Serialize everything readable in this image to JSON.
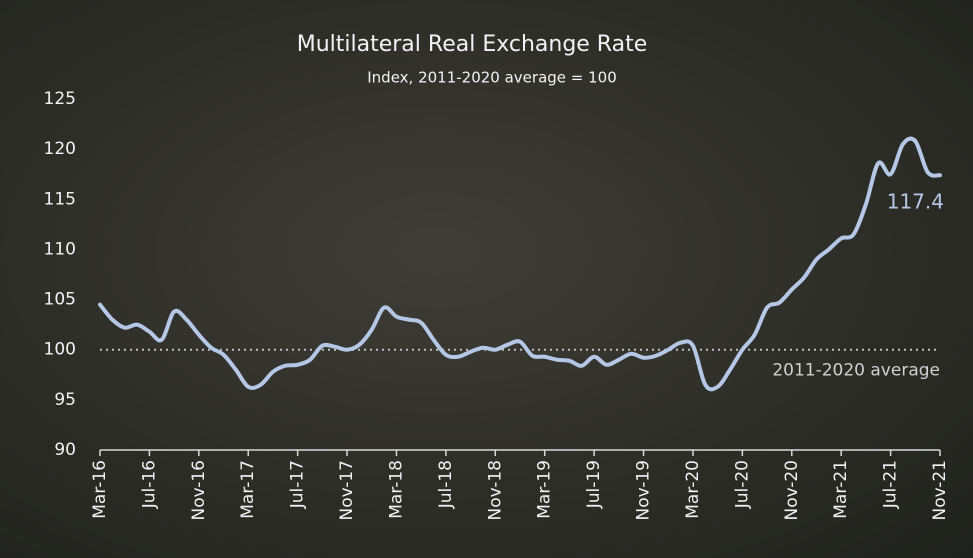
{
  "chart_data": {
    "type": "line",
    "title": "Multilateral Real Exchange Rate",
    "subtitle": "Index, 2011-2020 average = 100",
    "categories": [
      "Mar-16",
      null,
      null,
      null,
      "Jul-16",
      null,
      null,
      null,
      "Nov-16",
      null,
      null,
      null,
      "Mar-17",
      null,
      null,
      null,
      "Jul-17",
      null,
      null,
      null,
      "Nov-17",
      null,
      null,
      null,
      "Mar-18",
      null,
      null,
      null,
      "Jul-18",
      null,
      null,
      null,
      "Nov-18",
      null,
      null,
      null,
      "Mar-19",
      null,
      null,
      null,
      "Jul-19",
      null,
      null,
      null,
      "Nov-19",
      null,
      null,
      null,
      "Mar-20",
      null,
      null,
      null,
      "Jul-20",
      null,
      null,
      null,
      "Nov-20",
      null,
      null,
      null,
      "Mar-21",
      null,
      null,
      null,
      "Jul-21",
      null,
      null,
      null,
      "Nov-21"
    ],
    "series": [
      {
        "name": "Multilateral Real Exchange Rate",
        "color": "#b4c7e7",
        "values": [
          104.5,
          103.0,
          102.2,
          102.5,
          101.8,
          101.0,
          103.8,
          103.0,
          101.5,
          100.2,
          99.5,
          98.0,
          96.3,
          96.5,
          97.8,
          98.4,
          98.5,
          99.0,
          100.4,
          100.3,
          100.0,
          100.5,
          102.0,
          104.2,
          103.3,
          103.0,
          102.7,
          101.0,
          99.5,
          99.3,
          99.8,
          100.2,
          100.0,
          100.5,
          100.8,
          99.4,
          99.3,
          99.0,
          98.9,
          98.4,
          99.3,
          98.5,
          99.0,
          99.6,
          99.2,
          99.4,
          100.0,
          100.7,
          100.4,
          96.5,
          96.3,
          98.0,
          100.0,
          101.5,
          104.2,
          104.7,
          106.0,
          107.2,
          109.0,
          110.0,
          111.1,
          111.5,
          114.5,
          118.6,
          117.5,
          120.5,
          120.8,
          117.7,
          117.4
        ]
      }
    ],
    "last_value_label": "117.4",
    "reference_line": {
      "value": 100,
      "label": "2011-2020 average"
    },
    "ylim": [
      90,
      125
    ],
    "yticks": [
      90,
      95,
      100,
      105,
      110,
      115,
      120,
      125
    ],
    "grid": false
  }
}
